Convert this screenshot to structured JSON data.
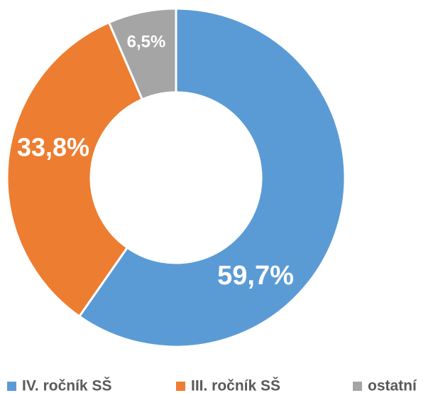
{
  "chart_data": {
    "type": "donut",
    "categories": [
      "IV. ročník SŠ",
      "III. ročník SŠ",
      "ostatní"
    ],
    "values": [
      59.7,
      33.8,
      6.5
    ],
    "value_labels": [
      "59,7%",
      "33,8%",
      "6,5%"
    ],
    "colors": [
      "#5b9bd5",
      "#ed7d31",
      "#a5a5a5"
    ],
    "legend": "bottom"
  }
}
